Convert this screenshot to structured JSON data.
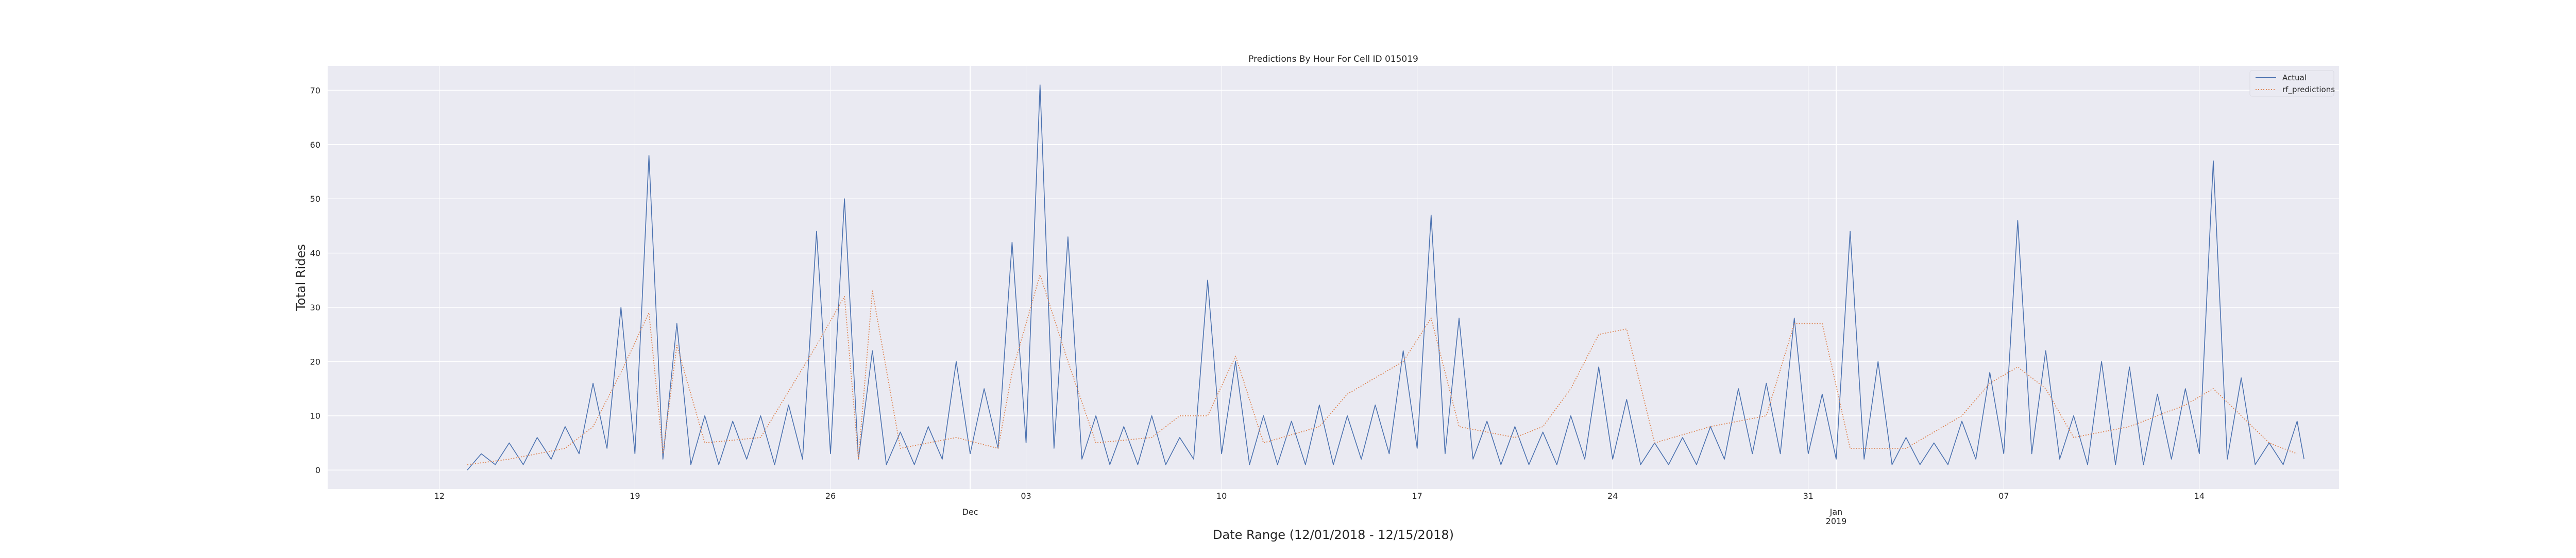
{
  "chart_data": {
    "type": "line",
    "title": "Predictions By Hour For Cell ID 015019",
    "xlabel": "Date Range (12/01/2018 - 12/15/2018)",
    "ylabel": "Total Rides",
    "ylim": [
      -3.5,
      74.5
    ],
    "yticks": [
      0,
      10,
      20,
      30,
      40,
      50,
      60,
      70
    ],
    "x_range_days": [
      "2018-11-08",
      "2019-01-19"
    ],
    "xticks": [
      {
        "date": "2018-11-12",
        "label": "12"
      },
      {
        "date": "2018-11-19",
        "label": "19"
      },
      {
        "date": "2018-11-26",
        "label": "26"
      },
      {
        "date": "2018-12-03",
        "label": "03"
      },
      {
        "date": "2018-12-10",
        "label": "10"
      },
      {
        "date": "2018-12-17",
        "label": "17"
      },
      {
        "date": "2018-12-24",
        "label": "24"
      },
      {
        "date": "2018-12-31",
        "label": "31"
      },
      {
        "date": "2019-01-07",
        "label": "07"
      },
      {
        "date": "2019-01-14",
        "label": "14"
      }
    ],
    "major_ticks": [
      {
        "date": "2018-12-01",
        "label": "Dec"
      },
      {
        "date": "2019-01-01",
        "label": "Jan\n2019"
      }
    ],
    "grid": true,
    "legend": "top-right",
    "data_start": "2018-11-13",
    "data_end": "2019-01-14",
    "series": [
      {
        "name": "Actual",
        "color": "#4c72b0",
        "style": "solid",
        "points": [
          [
            "2018-11-13T00:00",
            0
          ],
          [
            "2018-11-13T12:00",
            3
          ],
          [
            "2018-11-14T00:00",
            1
          ],
          [
            "2018-11-14T12:00",
            5
          ],
          [
            "2018-11-15T00:00",
            1
          ],
          [
            "2018-11-15T12:00",
            6
          ],
          [
            "2018-11-16T00:00",
            2
          ],
          [
            "2018-11-16T12:00",
            8
          ],
          [
            "2018-11-17T00:00",
            3
          ],
          [
            "2018-11-17T12:00",
            16
          ],
          [
            "2018-11-18T00:00",
            4
          ],
          [
            "2018-11-18T12:00",
            30
          ],
          [
            "2018-11-19T00:00",
            3
          ],
          [
            "2018-11-19T12:00",
            58
          ],
          [
            "2018-11-20T00:00",
            2
          ],
          [
            "2018-11-20T12:00",
            27
          ],
          [
            "2018-11-21T00:00",
            1
          ],
          [
            "2018-11-21T12:00",
            10
          ],
          [
            "2018-11-22T00:00",
            1
          ],
          [
            "2018-11-22T12:00",
            9
          ],
          [
            "2018-11-23T00:00",
            2
          ],
          [
            "2018-11-23T12:00",
            10
          ],
          [
            "2018-11-24T00:00",
            1
          ],
          [
            "2018-11-24T12:00",
            12
          ],
          [
            "2018-11-25T00:00",
            2
          ],
          [
            "2018-11-25T12:00",
            44
          ],
          [
            "2018-11-26T00:00",
            3
          ],
          [
            "2018-11-26T12:00",
            50
          ],
          [
            "2018-11-27T00:00",
            2
          ],
          [
            "2018-11-27T12:00",
            22
          ],
          [
            "2018-11-28T00:00",
            1
          ],
          [
            "2018-11-28T12:00",
            7
          ],
          [
            "2018-11-29T00:00",
            1
          ],
          [
            "2018-11-29T12:00",
            8
          ],
          [
            "2018-11-30T00:00",
            2
          ],
          [
            "2018-11-30T12:00",
            20
          ],
          [
            "2018-12-01T00:00",
            3
          ],
          [
            "2018-12-01T12:00",
            15
          ],
          [
            "2018-12-02T00:00",
            4
          ],
          [
            "2018-12-02T12:00",
            42
          ],
          [
            "2018-12-03T00:00",
            5
          ],
          [
            "2018-12-03T12:00",
            71
          ],
          [
            "2018-12-04T00:00",
            4
          ],
          [
            "2018-12-04T12:00",
            43
          ],
          [
            "2018-12-05T00:00",
            2
          ],
          [
            "2018-12-05T12:00",
            10
          ],
          [
            "2018-12-06T00:00",
            1
          ],
          [
            "2018-12-06T12:00",
            8
          ],
          [
            "2018-12-07T00:00",
            1
          ],
          [
            "2018-12-07T12:00",
            10
          ],
          [
            "2018-12-08T00:00",
            1
          ],
          [
            "2018-12-08T12:00",
            6
          ],
          [
            "2018-12-09T00:00",
            2
          ],
          [
            "2018-12-09T12:00",
            35
          ],
          [
            "2018-12-10T00:00",
            3
          ],
          [
            "2018-12-10T12:00",
            20
          ],
          [
            "2018-12-11T00:00",
            1
          ],
          [
            "2018-12-11T12:00",
            10
          ],
          [
            "2018-12-12T00:00",
            1
          ],
          [
            "2018-12-12T12:00",
            9
          ],
          [
            "2018-12-13T00:00",
            1
          ],
          [
            "2018-12-13T12:00",
            12
          ],
          [
            "2018-12-14T00:00",
            1
          ],
          [
            "2018-12-14T12:00",
            10
          ],
          [
            "2018-12-15T00:00",
            2
          ],
          [
            "2018-12-15T12:00",
            12
          ],
          [
            "2018-12-16T00:00",
            3
          ],
          [
            "2018-12-16T12:00",
            22
          ],
          [
            "2018-12-17T00:00",
            4
          ],
          [
            "2018-12-17T12:00",
            47
          ],
          [
            "2018-12-18T00:00",
            3
          ],
          [
            "2018-12-18T12:00",
            28
          ],
          [
            "2018-12-19T00:00",
            2
          ],
          [
            "2018-12-19T12:00",
            9
          ],
          [
            "2018-12-20T00:00",
            1
          ],
          [
            "2018-12-20T12:00",
            8
          ],
          [
            "2018-12-21T00:00",
            1
          ],
          [
            "2018-12-21T12:00",
            7
          ],
          [
            "2018-12-22T00:00",
            1
          ],
          [
            "2018-12-22T12:00",
            10
          ],
          [
            "2018-12-23T00:00",
            2
          ],
          [
            "2018-12-23T12:00",
            19
          ],
          [
            "2018-12-24T00:00",
            2
          ],
          [
            "2018-12-24T12:00",
            13
          ],
          [
            "2018-12-25T00:00",
            1
          ],
          [
            "2018-12-25T12:00",
            5
          ],
          [
            "2018-12-26T00:00",
            1
          ],
          [
            "2018-12-26T12:00",
            6
          ],
          [
            "2018-12-27T00:00",
            1
          ],
          [
            "2018-12-27T12:00",
            8
          ],
          [
            "2018-12-28T00:00",
            2
          ],
          [
            "2018-12-28T12:00",
            15
          ],
          [
            "2018-12-29T00:00",
            3
          ],
          [
            "2018-12-29T12:00",
            16
          ],
          [
            "2018-12-30T00:00",
            3
          ],
          [
            "2018-12-30T12:00",
            28
          ],
          [
            "2018-12-31T00:00",
            3
          ],
          [
            "2018-12-31T12:00",
            14
          ],
          [
            "2019-01-01T00:00",
            2
          ],
          [
            "2019-01-01T12:00",
            44
          ],
          [
            "2019-01-02T00:00",
            2
          ],
          [
            "2019-01-02T12:00",
            20
          ],
          [
            "2019-01-03T00:00",
            1
          ],
          [
            "2019-01-03T12:00",
            6
          ],
          [
            "2019-01-04T00:00",
            1
          ],
          [
            "2019-01-04T12:00",
            5
          ],
          [
            "2019-01-05T00:00",
            1
          ],
          [
            "2019-01-05T12:00",
            9
          ],
          [
            "2019-01-06T00:00",
            2
          ],
          [
            "2019-01-06T12:00",
            18
          ],
          [
            "2019-01-07T00:00",
            3
          ],
          [
            "2019-01-07T12:00",
            46
          ],
          [
            "2019-01-08T00:00",
            3
          ],
          [
            "2019-01-08T12:00",
            22
          ],
          [
            "2019-01-09T00:00",
            2
          ],
          [
            "2019-01-09T12:00",
            10
          ],
          [
            "2019-01-10T00:00",
            1
          ],
          [
            "2019-01-10T12:00",
            20
          ],
          [
            "2019-01-11T00:00",
            1
          ],
          [
            "2019-01-11T12:00",
            19
          ],
          [
            "2019-01-12T00:00",
            1
          ],
          [
            "2019-01-12T12:00",
            14
          ],
          [
            "2019-01-13T00:00",
            2
          ],
          [
            "2019-01-13T12:00",
            15
          ],
          [
            "2019-01-14T00:00",
            3
          ],
          [
            "2019-01-14T12:00",
            57
          ],
          [
            "2019-01-15T00:00",
            2
          ],
          [
            "2019-01-15T12:00",
            17
          ],
          [
            "2019-01-16T00:00",
            1
          ],
          [
            "2019-01-16T12:00",
            5
          ],
          [
            "2019-01-17T00:00",
            1
          ],
          [
            "2019-01-17T12:00",
            9
          ],
          [
            "2019-01-17T18:00",
            2
          ]
        ]
      },
      {
        "name": "rf_predictions",
        "color": "#dd8452",
        "style": "dotted",
        "points": [
          [
            "2018-11-13T00:00",
            1
          ],
          [
            "2018-11-14T12:00",
            2
          ],
          [
            "2018-11-16T12:00",
            4
          ],
          [
            "2018-11-17T12:00",
            8
          ],
          [
            "2018-11-18T12:00",
            18
          ],
          [
            "2018-11-19T12:00",
            29
          ],
          [
            "2018-11-20T00:00",
            3
          ],
          [
            "2018-11-20T12:00",
            23
          ],
          [
            "2018-11-21T12:00",
            5
          ],
          [
            "2018-11-23T12:00",
            6
          ],
          [
            "2018-11-25T12:00",
            23
          ],
          [
            "2018-11-26T12:00",
            32
          ],
          [
            "2018-11-27T00:00",
            2
          ],
          [
            "2018-11-27T12:00",
            33
          ],
          [
            "2018-11-28T12:00",
            4
          ],
          [
            "2018-11-30T12:00",
            6
          ],
          [
            "2018-12-02T00:00",
            4
          ],
          [
            "2018-12-02T12:00",
            18
          ],
          [
            "2018-12-03T12:00",
            36
          ],
          [
            "2018-12-04T12:00",
            20
          ],
          [
            "2018-12-05T12:00",
            5
          ],
          [
            "2018-12-07T12:00",
            6
          ],
          [
            "2018-12-08T12:00",
            10
          ],
          [
            "2018-12-09T12:00",
            10
          ],
          [
            "2018-12-10T12:00",
            21
          ],
          [
            "2018-12-11T12:00",
            5
          ],
          [
            "2018-12-13T12:00",
            8
          ],
          [
            "2018-12-14T12:00",
            14
          ],
          [
            "2018-12-16T12:00",
            20
          ],
          [
            "2018-12-17T12:00",
            28
          ],
          [
            "2018-12-18T12:00",
            8
          ],
          [
            "2018-12-20T12:00",
            6
          ],
          [
            "2018-12-21T12:00",
            8
          ],
          [
            "2018-12-22T12:00",
            15
          ],
          [
            "2018-12-23T12:00",
            25
          ],
          [
            "2018-12-24T12:00",
            26
          ],
          [
            "2018-12-25T12:00",
            5
          ],
          [
            "2018-12-27T12:00",
            8
          ],
          [
            "2018-12-29T12:00",
            10
          ],
          [
            "2018-12-30T12:00",
            27
          ],
          [
            "2018-12-31T12:00",
            27
          ],
          [
            "2019-01-01T12:00",
            4
          ],
          [
            "2019-01-02T12:00",
            4
          ],
          [
            "2019-01-03T12:00",
            4
          ],
          [
            "2019-01-05T12:00",
            10
          ],
          [
            "2019-01-06T12:00",
            16
          ],
          [
            "2019-01-07T12:00",
            19
          ],
          [
            "2019-01-08T12:00",
            15
          ],
          [
            "2019-01-09T12:00",
            6
          ],
          [
            "2019-01-11T12:00",
            8
          ],
          [
            "2019-01-12T12:00",
            10
          ],
          [
            "2019-01-13T12:00",
            12
          ],
          [
            "2019-01-14T12:00",
            15
          ],
          [
            "2019-01-15T12:00",
            10
          ],
          [
            "2019-01-16T12:00",
            5
          ],
          [
            "2019-01-17T12:00",
            3
          ]
        ]
      }
    ]
  }
}
